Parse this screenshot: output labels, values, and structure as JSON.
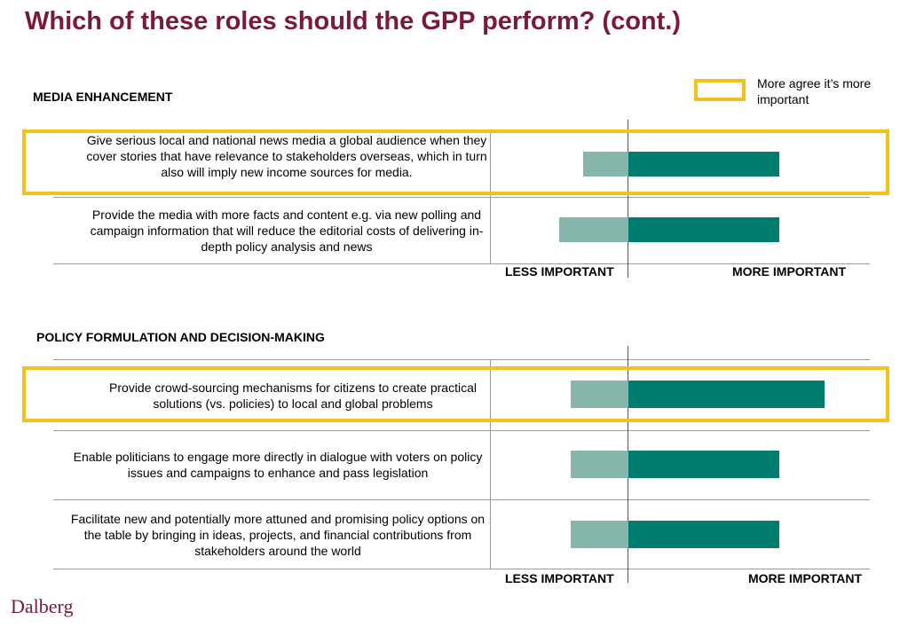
{
  "title": "Which of these roles should the GPP perform? (cont.)",
  "legend": {
    "text": "More agree  it’s more important",
    "box_color": "#f2c21b"
  },
  "colors": {
    "less_important": "#86b5ab",
    "more_important": "#007d6e",
    "highlight": "#f2c21b",
    "title": "#7a1a3a"
  },
  "logo": "Dalberg",
  "chart_data": [
    {
      "type": "bar",
      "orientation": "horizontal-diverging",
      "title": "MEDIA ENHANCEMENT",
      "axis_left_label": "LESS IMPORTANT",
      "axis_right_label": "MORE  IMPORTANT",
      "categories": [
        "Give serious local and national news media a global audience when they cover stories that have relevance to stakeholders overseas, which in turn also will imply new income sources for media.",
        "Provide the media with more facts and content e.g. via new polling and campaign information that will reduce the editorial costs of delivering in-depth policy analysis and news"
      ],
      "series": [
        {
          "name": "LESS IMPORTANT",
          "values": [
            -19,
            -29
          ]
        },
        {
          "name": "MORE  IMPORTANT",
          "values": [
            63,
            63
          ]
        }
      ],
      "xlim": [
        -60,
        100
      ],
      "highlighted": [
        0
      ],
      "grid": false
    },
    {
      "type": "bar",
      "orientation": "horizontal-diverging",
      "title": "POLICY FORMULATION AND DECISION-MAKING",
      "axis_left_label": "LESS IMPORTANT",
      "axis_right_label": "MORE IMPORTANT",
      "categories": [
        "Provide crowd-sourcing mechanisms for citizens to create practical solutions (vs. policies) to local and global problems",
        "Enable politicians to engage more directly in dialogue with voters on policy issues and campaigns to enhance and pass legislation",
        "Facilitate new and potentially more attuned and promising policy options on the table by bringing in ideas, projects, and financial contributions from stakeholders around the world"
      ],
      "series": [
        {
          "name": "LESS IMPORTANT",
          "values": [
            -24,
            -24,
            -24
          ]
        },
        {
          "name": "MORE IMPORTANT",
          "values": [
            82,
            63,
            63
          ]
        }
      ],
      "xlim": [
        -60,
        100
      ],
      "highlighted": [
        0
      ],
      "grid": false
    }
  ]
}
